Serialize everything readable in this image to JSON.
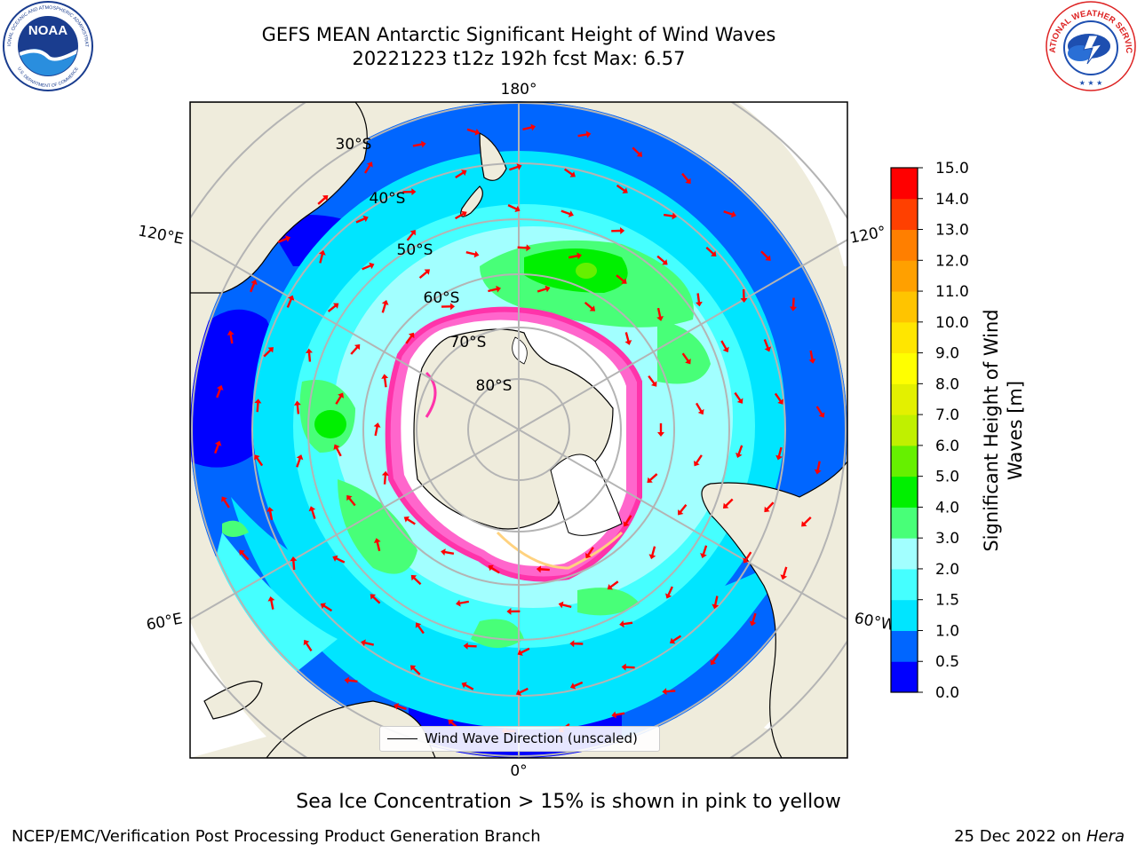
{
  "header": {
    "title_line1": "GEFS MEAN Antarctic Significant Height of Wind Waves",
    "title_line2": "20221223 t12z 192h fcst   Max: 6.57"
  },
  "logos": {
    "noaa_text": "NOAA",
    "noaa_ring_text": "NATIONAL OCEANIC AND ATMOSPHERIC ADMINISTRATION",
    "noaa_ring_bottom": "U.S. DEPARTMENT OF COMMERCE",
    "nws_ring_text": "NATIONAL WEATHER SERVICE"
  },
  "map": {
    "longitude_labels": [
      "180°",
      "120°E",
      "120°",
      "60°E",
      "60°W",
      "0°"
    ],
    "latitude_labels": [
      "30°S",
      "40°S",
      "50°S",
      "60°S",
      "70°S",
      "80°S"
    ],
    "legend_label": "Wind Wave Direction (unscaled)",
    "colors": {
      "land": "#efecdc",
      "ocean_deep": "#0066ff",
      "arrow": "#ff0000",
      "grid": "#b4b4b4"
    }
  },
  "colorbar": {
    "title_line1": "Significant Height of Wind",
    "title_line2": "Waves [m]",
    "ticks": [
      "0.0",
      "0.5",
      "1.0",
      "1.5",
      "2.0",
      "3.0",
      "4.0",
      "5.0",
      "6.0",
      "7.0",
      "8.0",
      "9.0",
      "10.0",
      "11.0",
      "12.0",
      "13.0",
      "14.0",
      "15.0"
    ],
    "colors": [
      "#0000ff",
      "#0066ff",
      "#00e5ff",
      "#45ffff",
      "#a2ffff",
      "#48ff78",
      "#00f000",
      "#66f000",
      "#c0f000",
      "#e3f000",
      "#ffff00",
      "#ffe600",
      "#ffc400",
      "#ffa000",
      "#ff7f00",
      "#ff4000",
      "#ff0000"
    ]
  },
  "captions": {
    "ice_note": "Sea Ice Concentration > 15% is shown in pink to yellow",
    "footer_left": "NCEP/EMC/Verification Post Processing Product Generation Branch",
    "footer_right_prefix": "25 Dec 2022 on ",
    "footer_right_host": "Hera"
  }
}
